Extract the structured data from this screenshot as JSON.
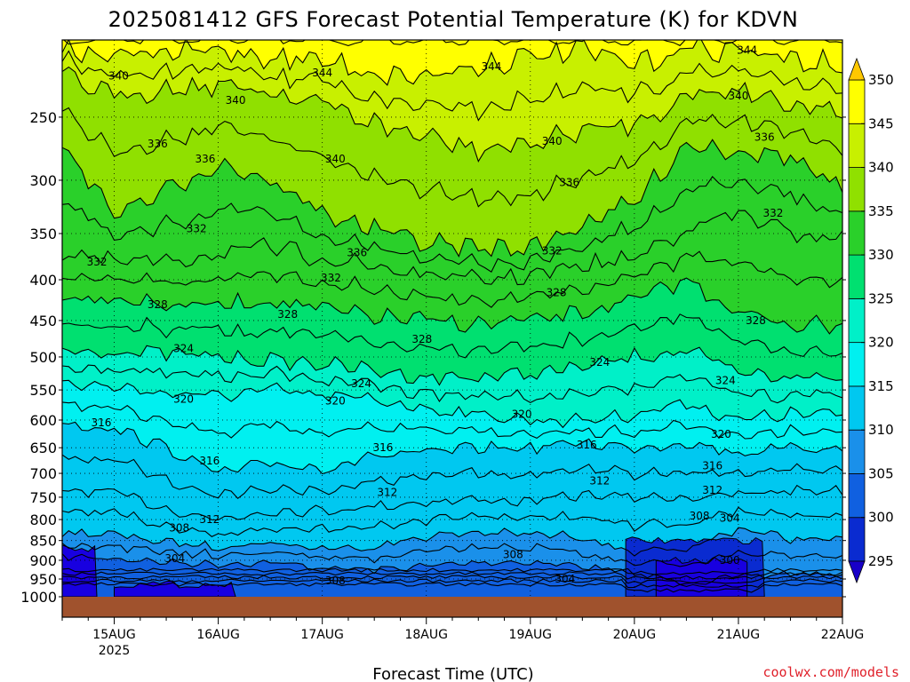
{
  "chart_data": {
    "type": "heatmap",
    "title": "2025081412 GFS Forecast Potential Temperature (K) for KDVN",
    "xlabel": "Forecast Time (UTC)",
    "ylabel": "",
    "credit": "coolwx.com/models",
    "y_axis": {
      "scale": "log",
      "inverted": true,
      "range": [
        1000,
        200
      ],
      "ticks": [
        250,
        300,
        350,
        400,
        450,
        500,
        550,
        600,
        650,
        700,
        750,
        800,
        850,
        900,
        950,
        1000
      ],
      "tick_labels": [
        "250",
        "300",
        "350",
        "400",
        "450",
        "500",
        "550",
        "600",
        "650",
        "700",
        "750",
        "800",
        "850",
        "900",
        "950",
        "1000"
      ]
    },
    "x_axis": {
      "range": [
        "2025-08-14T12:00Z",
        "2025-08-22T00:00Z"
      ],
      "range_hours": [
        0,
        180
      ],
      "ticks_hours": [
        12,
        36,
        60,
        84,
        108,
        132,
        156,
        180
      ],
      "tick_labels": [
        "15AUG",
        "16AUG",
        "17AUG",
        "18AUG",
        "19AUG",
        "20AUG",
        "21AUG",
        "22AUG"
      ],
      "year_label": "2025"
    },
    "grid": true,
    "colorbar": {
      "levels": [
        295,
        300,
        305,
        310,
        315,
        320,
        325,
        330,
        335,
        340,
        345,
        350
      ],
      "labels": [
        "295",
        "300",
        "305",
        "310",
        "315",
        "320",
        "325",
        "330",
        "335",
        "340",
        "345",
        "350"
      ],
      "colors": [
        "#1800e0",
        "#0a2bd0",
        "#1060e0",
        "#1a90ea",
        "#00c8f0",
        "#00f0f0",
        "#00f0c8",
        "#00e070",
        "#2ad02a",
        "#90e000",
        "#c8f000",
        "#ffff00",
        "#ffd000"
      ],
      "over_color": "#ffc800",
      "under_color": "#1800c8",
      "placement": "right"
    },
    "ground_color": "#a0522d",
    "series_hours": [
      0,
      12,
      24,
      36,
      48,
      60,
      72,
      84,
      96,
      108,
      120,
      132,
      144,
      156,
      168,
      180
    ],
    "isentropes": [
      {
        "theta": 304,
        "pressure": [
          890,
          895,
          905,
          910,
          905,
          920,
          925,
          915,
          905,
          905,
          915,
          935,
          960,
          945,
          935,
          940
        ]
      },
      {
        "theta": 308,
        "pressure": [
          830,
          835,
          855,
          865,
          855,
          870,
          865,
          840,
          830,
          835,
          840,
          880,
          875,
          820,
          845,
          850
        ]
      },
      {
        "theta": 312,
        "pressure": [
          735,
          740,
          775,
          800,
          780,
          780,
          770,
          760,
          755,
          760,
          745,
          750,
          750,
          745,
          735,
          735
        ]
      },
      {
        "theta": 316,
        "pressure": [
          605,
          615,
          650,
          700,
          680,
          690,
          665,
          660,
          650,
          650,
          640,
          650,
          640,
          660,
          650,
          650
        ]
      },
      {
        "theta": 320,
        "pressure": [
          540,
          545,
          555,
          560,
          550,
          560,
          565,
          580,
          590,
          600,
          600,
          590,
          570,
          600,
          590,
          590
        ]
      },
      {
        "theta": 324,
        "pressure": [
          490,
          492,
          495,
          500,
          505,
          510,
          520,
          530,
          530,
          525,
          515,
          500,
          490,
          525,
          530,
          530
        ]
      },
      {
        "theta": 328,
        "pressure": [
          420,
          420,
          430,
          430,
          425,
          435,
          445,
          450,
          455,
          450,
          440,
          425,
          400,
          440,
          455,
          455
        ]
      },
      {
        "theta": 332,
        "pressure": [
          370,
          380,
          380,
          370,
          365,
          375,
          385,
          395,
          400,
          395,
          385,
          375,
          345,
          330,
          350,
          355
        ]
      },
      {
        "theta": 336,
        "pressure": [
          270,
          330,
          310,
          285,
          300,
          330,
          345,
          360,
          365,
          365,
          340,
          320,
          270,
          275,
          280,
          310
        ]
      },
      {
        "theta": 340,
        "pressure": [
          222,
          235,
          230,
          228,
          232,
          240,
          255,
          265,
          275,
          270,
          260,
          255,
          235,
          230,
          240,
          245
        ]
      },
      {
        "theta": 344,
        "pressure": [
          205,
          210,
          208,
          206,
          210,
          212,
          220,
          222,
          215,
          210,
          206,
          215,
          205,
          205,
          212,
          215
        ]
      }
    ],
    "contour_labels": [
      {
        "text": "340",
        "hour": 13,
        "pressure": 222
      },
      {
        "text": "344",
        "hour": 60,
        "pressure": 220
      },
      {
        "text": "344",
        "hour": 99,
        "pressure": 216
      },
      {
        "text": "344",
        "hour": 158,
        "pressure": 206
      },
      {
        "text": "340",
        "hour": 40,
        "pressure": 238
      },
      {
        "text": "340",
        "hour": 156,
        "pressure": 235
      },
      {
        "text": "336",
        "hour": 22,
        "pressure": 270
      },
      {
        "text": "336",
        "hour": 33,
        "pressure": 282
      },
      {
        "text": "340",
        "hour": 63,
        "pressure": 282
      },
      {
        "text": "340",
        "hour": 113,
        "pressure": 268
      },
      {
        "text": "336",
        "hour": 162,
        "pressure": 265
      },
      {
        "text": "336",
        "hour": 117,
        "pressure": 302
      },
      {
        "text": "332",
        "hour": 31,
        "pressure": 345
      },
      {
        "text": "332",
        "hour": 164,
        "pressure": 330
      },
      {
        "text": "336",
        "hour": 68,
        "pressure": 370
      },
      {
        "text": "332",
        "hour": 113,
        "pressure": 368
      },
      {
        "text": "332",
        "hour": 8,
        "pressure": 380
      },
      {
        "text": "332",
        "hour": 62,
        "pressure": 398
      },
      {
        "text": "328",
        "hour": 114,
        "pressure": 415
      },
      {
        "text": "328",
        "hour": 22,
        "pressure": 430
      },
      {
        "text": "328",
        "hour": 52,
        "pressure": 442
      },
      {
        "text": "328",
        "hour": 160,
        "pressure": 450
      },
      {
        "text": "328",
        "hour": 83,
        "pressure": 475
      },
      {
        "text": "324",
        "hour": 28,
        "pressure": 488
      },
      {
        "text": "324",
        "hour": 124,
        "pressure": 508
      },
      {
        "text": "324",
        "hour": 69,
        "pressure": 540
      },
      {
        "text": "324",
        "hour": 153,
        "pressure": 535
      },
      {
        "text": "320",
        "hour": 28,
        "pressure": 565
      },
      {
        "text": "320",
        "hour": 63,
        "pressure": 568
      },
      {
        "text": "320",
        "hour": 106,
        "pressure": 590
      },
      {
        "text": "316",
        "hour": 9,
        "pressure": 605
      },
      {
        "text": "320",
        "hour": 152,
        "pressure": 625
      },
      {
        "text": "316",
        "hour": 74,
        "pressure": 650
      },
      {
        "text": "316",
        "hour": 121,
        "pressure": 645
      },
      {
        "text": "316",
        "hour": 34,
        "pressure": 675
      },
      {
        "text": "316",
        "hour": 150,
        "pressure": 685
      },
      {
        "text": "312",
        "hour": 124,
        "pressure": 715
      },
      {
        "text": "312",
        "hour": 75,
        "pressure": 740
      },
      {
        "text": "312",
        "hour": 150,
        "pressure": 735
      },
      {
        "text": "312",
        "hour": 34,
        "pressure": 800
      },
      {
        "text": "308",
        "hour": 147,
        "pressure": 792
      },
      {
        "text": "304",
        "hour": 154,
        "pressure": 797
      },
      {
        "text": "308",
        "hour": 27,
        "pressure": 820
      },
      {
        "text": "304",
        "hour": 26,
        "pressure": 895
      },
      {
        "text": "308",
        "hour": 104,
        "pressure": 885
      },
      {
        "text": "300",
        "hour": 154,
        "pressure": 900
      },
      {
        "text": "304",
        "hour": 116,
        "pressure": 950
      },
      {
        "text": "308",
        "hour": 63,
        "pressure": 955
      }
    ]
  }
}
